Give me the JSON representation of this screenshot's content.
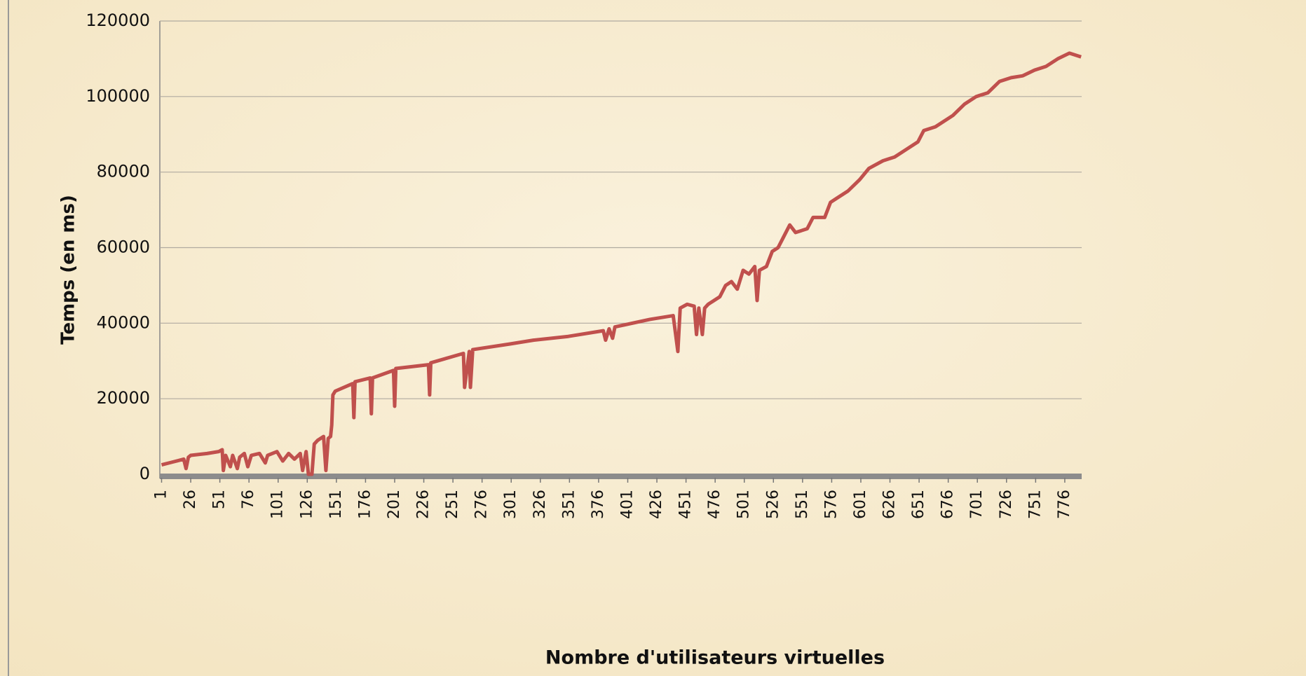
{
  "chart_data": {
    "type": "line",
    "xlabel": "Nombre d'utilisateurs virtuelles",
    "ylabel": "Temps (en ms)",
    "xlim": [
      -0.5,
      790.5
    ],
    "xticks": [
      1,
      26,
      51,
      76,
      101,
      126,
      151,
      176,
      201,
      226,
      251,
      276,
      301,
      326,
      351,
      376,
      401,
      426,
      451,
      476,
      501,
      526,
      551,
      576,
      601,
      626,
      651,
      676,
      701,
      726,
      751,
      776
    ],
    "ylim": [
      0,
      120000
    ],
    "yticks": [
      0,
      20000,
      40000,
      60000,
      80000,
      100000,
      120000
    ],
    "grid": true,
    "series": [
      {
        "color": "#c0504d",
        "x": [
          1,
          10,
          20,
          22,
          24,
          26,
          40,
          50,
          53,
          54,
          56,
          60,
          62,
          66,
          68,
          72,
          75,
          78,
          85,
          90,
          92,
          100,
          105,
          110,
          115,
          120,
          122,
          125,
          127,
          130,
          132,
          135,
          140,
          142,
          144,
          146,
          147,
          148,
          150,
          165,
          166,
          167,
          180,
          181,
          182,
          200,
          201,
          202,
          230,
          231,
          232,
          260,
          261,
          265,
          266,
          268,
          300,
          320,
          350,
          380,
          382,
          385,
          388,
          390,
          420,
          440,
          444,
          446,
          452,
          458,
          460,
          462,
          465,
          467,
          470,
          480,
          485,
          490,
          495,
          500,
          505,
          510,
          512,
          514,
          520,
          525,
          530,
          535,
          540,
          545,
          555,
          560,
          570,
          575,
          580,
          590,
          600,
          608,
          620,
          630,
          640,
          650,
          655,
          665,
          680,
          690,
          700,
          710,
          720,
          730,
          740,
          750,
          760,
          770,
          780,
          790
        ],
        "values": [
          2500,
          3200,
          4000,
          1500,
          4500,
          5000,
          5500,
          6000,
          6500,
          1000,
          5000,
          2000,
          5000,
          1500,
          4500,
          5500,
          2000,
          5000,
          5500,
          3000,
          5000,
          6000,
          3500,
          5500,
          4000,
          5500,
          1000,
          6000,
          0,
          0,
          8000,
          9000,
          10000,
          1000,
          9500,
          10000,
          13000,
          21000,
          22000,
          24000,
          15000,
          24500,
          25500,
          16000,
          25500,
          27500,
          18000,
          28000,
          29000,
          21000,
          29500,
          32000,
          23000,
          32500,
          23000,
          33000,
          34500,
          35500,
          36500,
          38000,
          35500,
          38500,
          36000,
          39000,
          41000,
          42000,
          32500,
          44000,
          45000,
          44500,
          37000,
          44000,
          37000,
          44000,
          45000,
          47000,
          50000,
          51000,
          49000,
          54000,
          53000,
          55000,
          46000,
          54000,
          55000,
          59000,
          60000,
          63000,
          66000,
          64000,
          65000,
          68000,
          68000,
          72000,
          73000,
          75000,
          78000,
          81000,
          83000,
          84000,
          86000,
          88000,
          91000,
          92000,
          95000,
          98000,
          100000,
          101000,
          104000,
          105000,
          105500,
          107000,
          108000,
          110000,
          111500,
          110500
        ]
      }
    ]
  }
}
